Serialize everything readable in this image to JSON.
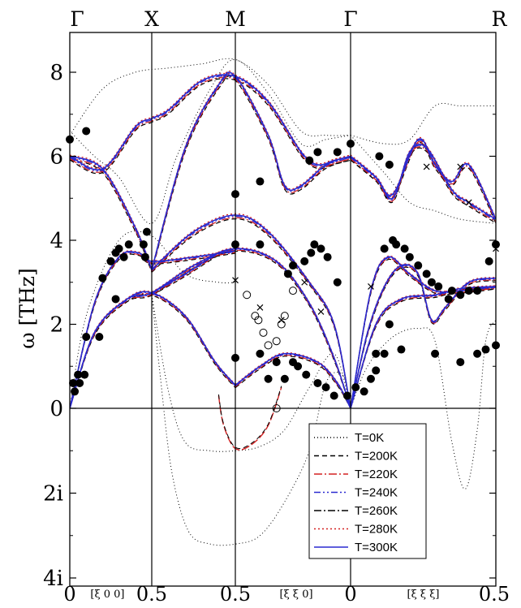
{
  "chart_data": {
    "type": "line",
    "title": "",
    "ylabel": "ω [THz]",
    "xlabel": "",
    "ylim": [
      -4,
      9
    ],
    "y_ticks": [
      {
        "value": 8,
        "label": "8"
      },
      {
        "value": 6,
        "label": "6"
      },
      {
        "value": 4,
        "label": "4"
      },
      {
        "value": 2,
        "label": "2"
      },
      {
        "value": 0,
        "label": "0"
      },
      {
        "value": -2,
        "label": "2i"
      },
      {
        "value": -4,
        "label": "4i"
      }
    ],
    "symmetry_points": [
      {
        "label": "Γ",
        "k": 0
      },
      {
        "label": "X",
        "k": 0.5
      },
      {
        "label": "M",
        "k": 1.0
      },
      {
        "label": "Γ",
        "k": 1.7
      },
      {
        "label": "R",
        "k": 2.56
      }
    ],
    "x_ticks": [
      {
        "label": "0",
        "k": 0
      },
      {
        "label": "0.5",
        "k": 0.5
      },
      {
        "label": "0.5",
        "k": 1.0
      },
      {
        "label": "0",
        "k": 1.7
      },
      {
        "label": "0.5",
        "k": 2.56
      }
    ],
    "direction_labels": [
      {
        "label": "[ξ 0 0]",
        "k": 0.23
      },
      {
        "label": "[ξ ξ 0]",
        "k": 1.37
      },
      {
        "label": "[ξ ξ ξ]",
        "k": 2.13
      }
    ],
    "legend": {
      "position": "bottom-right",
      "entries": [
        {
          "label": "T=0K",
          "color": "#000000",
          "dash": "1,3"
        },
        {
          "label": "T=200K",
          "color": "#000000",
          "dash": "6,4"
        },
        {
          "label": "T=220K",
          "color": "#d42020",
          "dash": "10,3,2,3"
        },
        {
          "label": "T=240K",
          "color": "#2a2ad0",
          "dash": "8,3,2,3,2,3"
        },
        {
          "label": "T=260K",
          "color": "#000000",
          "dash": "9,3,2,3"
        },
        {
          "label": "T=280K",
          "color": "#d42020",
          "dash": "2,3"
        },
        {
          "label": "T=300K",
          "color": "#2a2ad0",
          "dash": ""
        }
      ]
    },
    "series_T300": [
      [
        [
          0,
          0
        ],
        [
          0.15,
          1.8
        ],
        [
          0.35,
          2.6
        ],
        [
          0.5,
          2.75
        ],
        [
          0.7,
          2.2
        ],
        [
          0.88,
          1.1
        ],
        [
          1.0,
          0.55
        ]
      ],
      [
        [
          0,
          0
        ],
        [
          0.15,
          1.8
        ],
        [
          0.35,
          2.6
        ],
        [
          0.5,
          2.75
        ],
        [
          0.75,
          3.4
        ],
        [
          1.0,
          3.8
        ],
        [
          1.25,
          3.5
        ],
        [
          1.45,
          2.5
        ],
        [
          1.6,
          1.2
        ],
        [
          1.7,
          0
        ]
      ],
      [
        [
          0,
          0
        ],
        [
          0.15,
          2.5
        ],
        [
          0.3,
          3.6
        ],
        [
          0.42,
          3.7
        ],
        [
          0.5,
          3.5
        ],
        [
          0.75,
          3.6
        ],
        [
          1.0,
          3.75
        ]
      ],
      [
        [
          1.0,
          0.55
        ],
        [
          1.15,
          1.0
        ],
        [
          1.3,
          1.3
        ],
        [
          1.5,
          1.1
        ],
        [
          1.62,
          0.6
        ],
        [
          1.7,
          0
        ]
      ],
      [
        [
          0,
          6.0
        ],
        [
          0.2,
          5.7
        ],
        [
          0.4,
          4.3
        ],
        [
          0.5,
          3.3
        ]
      ],
      [
        [
          0.5,
          3.3
        ],
        [
          0.75,
          4.2
        ],
        [
          1.0,
          4.6
        ],
        [
          1.2,
          4.2
        ],
        [
          1.45,
          3.0
        ],
        [
          1.6,
          2.0
        ],
        [
          1.7,
          0
        ]
      ],
      [
        [
          0,
          6.0
        ],
        [
          0.2,
          5.7
        ],
        [
          0.4,
          6.7
        ],
        [
          0.5,
          6.9
        ],
        [
          0.6,
          7.1
        ],
        [
          0.8,
          7.8
        ],
        [
          1.0,
          7.9
        ],
        [
          1.2,
          7.3
        ],
        [
          1.4,
          6.1
        ],
        [
          1.5,
          5.8
        ],
        [
          1.6,
          5.9
        ],
        [
          1.7,
          6.0
        ]
      ],
      [
        [
          0.5,
          3.3
        ],
        [
          0.7,
          6.2
        ],
        [
          0.9,
          7.7
        ],
        [
          1.0,
          7.9
        ],
        [
          1.2,
          6.5
        ],
        [
          1.3,
          5.3
        ],
        [
          1.4,
          5.3
        ],
        [
          1.55,
          5.8
        ],
        [
          1.7,
          6.0
        ]
      ],
      [
        [
          1.7,
          0
        ],
        [
          1.82,
          2.8
        ],
        [
          1.92,
          3.6
        ],
        [
          2.05,
          3.2
        ],
        [
          2.2,
          2.8
        ],
        [
          2.35,
          2.8
        ],
        [
          2.56,
          2.9
        ]
      ],
      [
        [
          1.7,
          0
        ],
        [
          1.85,
          2.0
        ],
        [
          2.0,
          2.6
        ],
        [
          2.2,
          2.7
        ],
        [
          2.35,
          2.85
        ],
        [
          2.56,
          2.9
        ]
      ],
      [
        [
          1.7,
          0
        ],
        [
          1.8,
          1.8
        ],
        [
          1.9,
          2.9
        ],
        [
          2.0,
          3.4
        ],
        [
          2.1,
          3.2
        ],
        [
          2.18,
          2.1
        ],
        [
          2.26,
          2.4
        ],
        [
          2.4,
          3.0
        ],
        [
          2.56,
          3.1
        ]
      ],
      [
        [
          1.7,
          6.0
        ],
        [
          1.85,
          5.5
        ],
        [
          1.95,
          5.1
        ],
        [
          2.1,
          6.4
        ],
        [
          2.2,
          5.8
        ],
        [
          2.3,
          5.4
        ],
        [
          2.4,
          5.8
        ],
        [
          2.56,
          4.5
        ]
      ],
      [
        [
          1.7,
          6.0
        ],
        [
          1.85,
          5.5
        ],
        [
          1.95,
          5.0
        ],
        [
          2.05,
          6.1
        ],
        [
          2.15,
          6.2
        ],
        [
          2.3,
          5.2
        ],
        [
          2.4,
          4.9
        ],
        [
          2.56,
          4.5
        ]
      ],
      [
        [
          0.5,
          2.75
        ],
        [
          0.7,
          3.2
        ],
        [
          0.9,
          3.7
        ],
        [
          1.0,
          3.8
        ]
      ]
    ],
    "series_T0": [
      [
        [
          0,
          0
        ],
        [
          0.1,
          2.2
        ],
        [
          0.3,
          4.0
        ],
        [
          0.5,
          4.1
        ],
        [
          0.7,
          3.2
        ],
        [
          0.9,
          3.0
        ],
        [
          1.0,
          3.0
        ]
      ],
      [
        [
          0,
          6.6
        ],
        [
          0.15,
          6.0
        ],
        [
          0.3,
          5.5
        ],
        [
          0.5,
          4.4
        ],
        [
          0.65,
          6.0
        ],
        [
          0.85,
          7.6
        ],
        [
          1.0,
          8.3
        ],
        [
          1.2,
          7.5
        ],
        [
          1.4,
          6.3
        ],
        [
          1.55,
          6.4
        ],
        [
          1.7,
          6.5
        ]
      ],
      [
        [
          0,
          6.5
        ],
        [
          0.2,
          7.6
        ],
        [
          0.4,
          8.0
        ],
        [
          0.6,
          8.1
        ],
        [
          0.8,
          8.2
        ],
        [
          1.0,
          8.3
        ],
        [
          1.2,
          7.7
        ],
        [
          1.4,
          6.6
        ],
        [
          1.55,
          6.5
        ],
        [
          1.7,
          6.5
        ]
      ],
      [
        [
          0.5,
          2.7
        ],
        [
          0.55,
          0.8
        ],
        [
          0.62,
          -1.5
        ],
        [
          0.72,
          -2.9
        ],
        [
          0.85,
          -3.2
        ],
        [
          1.0,
          -3.2
        ],
        [
          1.15,
          -3.0
        ],
        [
          1.3,
          -2.2
        ],
        [
          1.45,
          -1.0
        ],
        [
          1.55,
          0.6
        ],
        [
          1.65,
          0.8
        ],
        [
          1.7,
          0
        ]
      ],
      [
        [
          0.5,
          2.7
        ],
        [
          0.6,
          0.4
        ],
        [
          0.7,
          -0.8
        ],
        [
          0.85,
          -1.0
        ],
        [
          1.0,
          -1.0
        ],
        [
          1.15,
          -0.9
        ],
        [
          1.3,
          -0.5
        ],
        [
          1.45,
          0.5
        ],
        [
          1.6,
          1.3
        ],
        [
          1.7,
          0
        ]
      ],
      [
        [
          1.7,
          6.5
        ],
        [
          1.9,
          6.3
        ],
        [
          2.05,
          6.4
        ],
        [
          2.2,
          7.2
        ],
        [
          2.35,
          7.2
        ],
        [
          2.56,
          7.2
        ]
      ],
      [
        [
          1.7,
          0
        ],
        [
          1.8,
          1.0
        ],
        [
          1.95,
          1.7
        ],
        [
          2.1,
          1.9
        ],
        [
          2.2,
          1.6
        ],
        [
          2.3,
          -0.8
        ],
        [
          2.38,
          -1.9
        ],
        [
          2.45,
          -0.5
        ],
        [
          2.5,
          1.6
        ],
        [
          2.56,
          2.1
        ]
      ],
      [
        [
          1.7,
          6.5
        ],
        [
          1.9,
          5.6
        ],
        [
          2.05,
          4.9
        ],
        [
          2.2,
          4.7
        ],
        [
          2.35,
          4.5
        ],
        [
          2.56,
          4.4
        ]
      ]
    ],
    "series_neg_branch": [
      [
        0.9,
        0.3
      ],
      [
        0.93,
        -0.4
      ],
      [
        1.0,
        -0.95
      ],
      [
        1.1,
        -0.85
      ],
      [
        1.2,
        -0.4
      ],
      [
        1.28,
        0.5
      ]
    ],
    "experimental_filled": [
      [
        0,
        6.4
      ],
      [
        0.1,
        6.6
      ],
      [
        0.02,
        0.6
      ],
      [
        0.03,
        0.4
      ],
      [
        0.05,
        0.8
      ],
      [
        0.06,
        0.6
      ],
      [
        0.09,
        0.8
      ],
      [
        0.1,
        1.7
      ],
      [
        0.18,
        1.7
      ],
      [
        0.2,
        3.1
      ],
      [
        0.25,
        3.5
      ],
      [
        0.28,
        3.7
      ],
      [
        0.3,
        3.8
      ],
      [
        0.36,
        3.9
      ],
      [
        0.33,
        3.6
      ],
      [
        0.28,
        2.6
      ],
      [
        0.45,
        3.9
      ],
      [
        0.47,
        4.2
      ],
      [
        0.46,
        3.6
      ],
      [
        1.0,
        5.1
      ],
      [
        1.15,
        5.4
      ],
      [
        1.0,
        3.9
      ],
      [
        1.15,
        3.9
      ],
      [
        1.0,
        1.2
      ],
      [
        1.15,
        1.3
      ],
      [
        1.2,
        0.7
      ],
      [
        1.3,
        0.7
      ],
      [
        1.25,
        1.1
      ],
      [
        1.35,
        1.1
      ],
      [
        1.38,
        1.0
      ],
      [
        1.43,
        0.8
      ],
      [
        1.5,
        0.6
      ],
      [
        1.55,
        0.5
      ],
      [
        1.6,
        0.3
      ],
      [
        1.68,
        0.3
      ],
      [
        1.32,
        3.2
      ],
      [
        1.35,
        3.4
      ],
      [
        1.42,
        3.5
      ],
      [
        1.46,
        3.7
      ],
      [
        1.48,
        3.9
      ],
      [
        1.52,
        3.8
      ],
      [
        1.56,
        3.6
      ],
      [
        1.62,
        3.0
      ],
      [
        1.45,
        5.9
      ],
      [
        1.5,
        6.1
      ],
      [
        1.62,
        6.1
      ],
      [
        1.7,
        6.3
      ],
      [
        1.87,
        6.0
      ],
      [
        1.93,
        5.8
      ],
      [
        1.73,
        0.5
      ],
      [
        1.78,
        0.4
      ],
      [
        1.82,
        0.7
      ],
      [
        1.85,
        0.9
      ],
      [
        1.9,
        1.3
      ],
      [
        1.93,
        2.0
      ],
      [
        1.9,
        3.8
      ],
      [
        1.95,
        4.0
      ],
      [
        1.97,
        3.9
      ],
      [
        2.02,
        3.8
      ],
      [
        2.05,
        3.6
      ],
      [
        2.1,
        3.4
      ],
      [
        2.15,
        3.2
      ],
      [
        2.18,
        3.0
      ],
      [
        2.22,
        2.9
      ],
      [
        2.28,
        2.6
      ],
      [
        2.3,
        2.8
      ],
      [
        2.35,
        2.7
      ],
      [
        2.4,
        2.8
      ],
      [
        2.45,
        2.8
      ],
      [
        1.85,
        1.3
      ],
      [
        2.0,
        1.4
      ],
      [
        2.2,
        1.3
      ],
      [
        2.35,
        1.1
      ],
      [
        2.45,
        1.3
      ],
      [
        2.5,
        1.4
      ],
      [
        2.56,
        3.9
      ],
      [
        2.56,
        1.5
      ],
      [
        2.52,
        3.5
      ]
    ],
    "experimental_open": [
      [
        1.07,
        2.7
      ],
      [
        1.12,
        2.2
      ],
      [
        1.14,
        2.1
      ],
      [
        1.17,
        1.8
      ],
      [
        1.2,
        1.5
      ],
      [
        1.25,
        1.6
      ],
      [
        1.28,
        2.0
      ],
      [
        1.3,
        2.2
      ],
      [
        1.35,
        2.8
      ],
      [
        1.25,
        0.0
      ]
    ],
    "experimental_cross": [
      [
        1.0,
        3.05
      ],
      [
        1.15,
        2.4
      ],
      [
        1.28,
        2.1
      ],
      [
        1.42,
        3.0
      ],
      [
        1.52,
        2.3
      ],
      [
        1.82,
        2.9
      ],
      [
        2.15,
        5.75
      ],
      [
        2.35,
        5.75
      ],
      [
        2.4,
        4.9
      ],
      [
        2.56,
        3.8
      ]
    ]
  }
}
